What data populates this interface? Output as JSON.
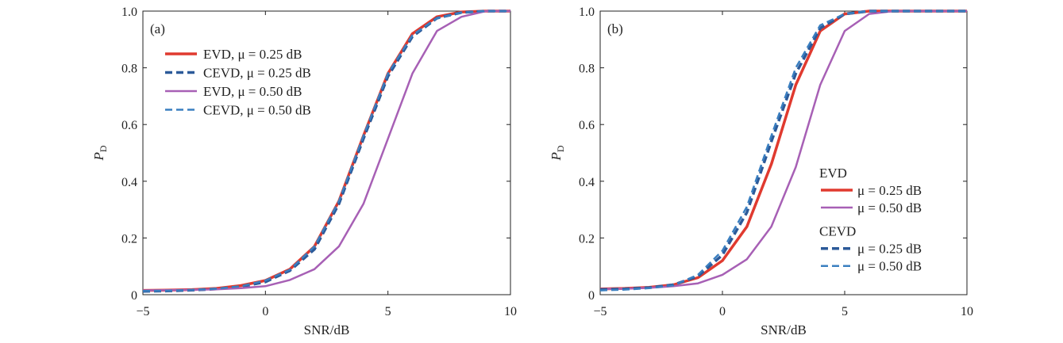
{
  "chart_data": [
    {
      "type": "line",
      "panel_label": "(a)",
      "xlabel": "SNR/dB",
      "ylabel": "P",
      "ylabel_sub": "D",
      "xlim": [
        -5,
        10
      ],
      "ylim": [
        0,
        1
      ],
      "xticks": [
        -5,
        0,
        5,
        10
      ],
      "yticks": [
        0,
        0.2,
        0.4,
        0.6,
        0.8,
        1.0
      ],
      "ytick_labels": [
        "0",
        "0.2",
        "0.4",
        "0.6",
        "0.8",
        "1.0"
      ],
      "grid": false,
      "legend_placement": "upper-left",
      "legend_headers": [],
      "series": [
        {
          "name": "EVD, μ = 0.25 dB",
          "color": "#e03a2f",
          "style": "solid",
          "width": 3.5,
          "x": [
            -5,
            -4,
            -3,
            -2,
            -1,
            0,
            1,
            2,
            3,
            4,
            5,
            6,
            7,
            8,
            9,
            10
          ],
          "y": [
            0.015,
            0.016,
            0.018,
            0.022,
            0.032,
            0.05,
            0.09,
            0.17,
            0.33,
            0.56,
            0.78,
            0.92,
            0.98,
            0.997,
            1,
            1
          ]
        },
        {
          "name": "CEVD, μ = 0.25 dB",
          "color": "#2c5a99",
          "style": "dashed",
          "width": 3.5,
          "x": [
            -5,
            -4,
            -3,
            -2,
            -1,
            0,
            1,
            2,
            3,
            4,
            5,
            6,
            7,
            8,
            9,
            10
          ],
          "y": [
            0.012,
            0.013,
            0.016,
            0.02,
            0.028,
            0.045,
            0.085,
            0.16,
            0.32,
            0.55,
            0.77,
            0.91,
            0.975,
            0.995,
            1,
            1
          ]
        },
        {
          "name": "EVD, μ = 0.50 dB",
          "color": "#a760b5",
          "style": "solid",
          "width": 2.5,
          "x": [
            -5,
            -4,
            -3,
            -2,
            -1,
            0,
            1,
            2,
            3,
            4,
            5,
            6,
            7,
            8,
            9,
            10
          ],
          "y": [
            0.015,
            0.016,
            0.017,
            0.019,
            0.023,
            0.03,
            0.052,
            0.09,
            0.17,
            0.32,
            0.55,
            0.78,
            0.93,
            0.98,
            1,
            1
          ]
        },
        {
          "name": "CEVD, μ = 0.50 dB",
          "color": "#3a7fc0",
          "style": "dashed",
          "width": 2.5,
          "x": [
            -5,
            -4,
            -3,
            -2,
            -1,
            0,
            1,
            2,
            3,
            4,
            5,
            6,
            7,
            8,
            9,
            10
          ],
          "y": [
            0.013,
            0.014,
            0.017,
            0.021,
            0.03,
            0.05,
            0.088,
            0.17,
            0.33,
            0.56,
            0.78,
            0.915,
            0.975,
            0.995,
            1,
            1
          ]
        }
      ]
    },
    {
      "type": "line",
      "panel_label": "(b)",
      "xlabel": "SNR/dB",
      "ylabel": "P",
      "ylabel_sub": "D",
      "xlim": [
        -5,
        10
      ],
      "ylim": [
        0,
        1
      ],
      "xticks": [
        -5,
        0,
        5,
        10
      ],
      "yticks": [
        0,
        0.2,
        0.4,
        0.6,
        0.8,
        1.0
      ],
      "ytick_labels": [
        "0",
        "0.2",
        "0.4",
        "0.6",
        "0.8",
        "1.0"
      ],
      "grid": false,
      "legend_placement": "lower-right",
      "legend_headers": [
        "EVD",
        "CEVD"
      ],
      "series": [
        {
          "name": "μ = 0.25 dB",
          "group": "EVD",
          "color": "#e03a2f",
          "style": "solid",
          "width": 3.5,
          "x": [
            -5,
            -4,
            -3,
            -2,
            -1,
            0,
            1,
            2,
            3,
            4,
            5,
            6,
            7,
            8,
            9,
            10
          ],
          "y": [
            0.02,
            0.022,
            0.026,
            0.035,
            0.06,
            0.12,
            0.24,
            0.46,
            0.74,
            0.93,
            0.99,
            1,
            1,
            1,
            1,
            1
          ]
        },
        {
          "name": "μ = 0.50 dB",
          "group": "EVD",
          "color": "#a760b5",
          "style": "solid",
          "width": 2.5,
          "x": [
            -5,
            -4,
            -3,
            -2,
            -1,
            0,
            1,
            2,
            3,
            4,
            5,
            6,
            7,
            8,
            9,
            10
          ],
          "y": [
            0.02,
            0.021,
            0.024,
            0.03,
            0.04,
            0.07,
            0.125,
            0.24,
            0.45,
            0.74,
            0.93,
            0.99,
            1,
            1,
            1,
            1
          ]
        },
        {
          "name": "μ = 0.25 dB",
          "group": "CEVD",
          "color": "#2c5a99",
          "style": "dashed",
          "width": 3.5,
          "x": [
            -5,
            -4,
            -3,
            -2,
            -1,
            0,
            1,
            2,
            3,
            4,
            5,
            6,
            7,
            8,
            9,
            10
          ],
          "y": [
            0.018,
            0.02,
            0.025,
            0.035,
            0.065,
            0.14,
            0.29,
            0.54,
            0.78,
            0.94,
            0.99,
            1,
            1,
            1,
            1,
            1
          ]
        },
        {
          "name": "μ = 0.50 dB",
          "group": "CEVD",
          "color": "#3a7fc0",
          "style": "dashed",
          "width": 2.5,
          "x": [
            -5,
            -4,
            -3,
            -2,
            -1,
            0,
            1,
            2,
            3,
            4,
            5,
            6,
            7,
            8,
            9,
            10
          ],
          "y": [
            0.015,
            0.018,
            0.023,
            0.033,
            0.07,
            0.155,
            0.31,
            0.56,
            0.8,
            0.95,
            0.99,
            1,
            1,
            1,
            1,
            1
          ]
        }
      ]
    }
  ]
}
